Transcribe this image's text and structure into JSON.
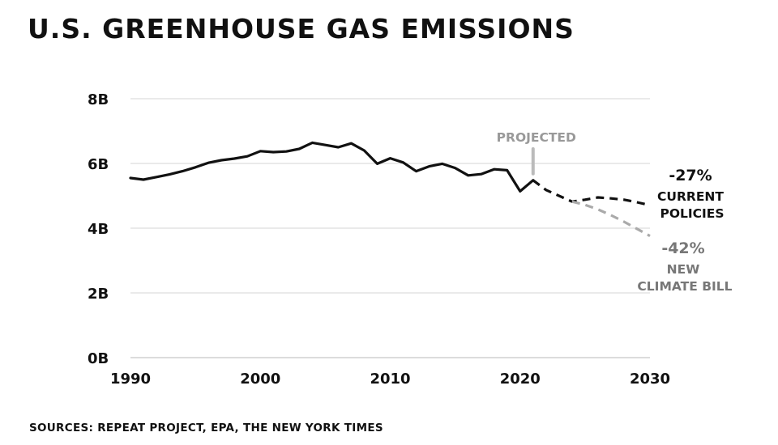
{
  "title": "U.S. GREENHOUSE GAS EMISSIONS",
  "source": "SOURCES: REPEAT PROJECT, EPA, THE NEW YORK TIMES",
  "colors": {
    "text": "#111111",
    "historical": "#111111",
    "current_policies": "#111111",
    "climate_bill": "#aaaaaa",
    "projected_marker": "#bbbbbb",
    "grid": "#dddddd"
  },
  "chart_data": {
    "type": "line",
    "title": "U.S. GREENHOUSE GAS EMISSIONS",
    "xlabel": "",
    "ylabel": "",
    "xlim": [
      1990,
      2030
    ],
    "ylim": [
      0,
      8
    ],
    "grid": true,
    "x_ticks": [
      1990,
      2000,
      2010,
      2020,
      2030
    ],
    "x_tick_labels": [
      "1990",
      "2000",
      "2010",
      "2020",
      "2030"
    ],
    "y_ticks": [
      0,
      2,
      4,
      6,
      8
    ],
    "y_tick_labels": [
      "0B",
      "2B",
      "4B",
      "6B",
      "8B"
    ],
    "series": [
      {
        "style": "solid",
        "color": "#111111",
        "x": [
          1990,
          1991,
          1992,
          1993,
          1994,
          1995,
          1996,
          1997,
          1998,
          1999,
          2000,
          2001,
          2002,
          2003,
          2004,
          2005,
          2006,
          2007,
          2008,
          2009,
          2010,
          2011,
          2012,
          2013,
          2014,
          2015,
          2016,
          2017,
          2018,
          2019,
          2020,
          2021
        ],
        "y": [
          5.55,
          5.5,
          5.58,
          5.66,
          5.76,
          5.88,
          6.02,
          6.1,
          6.15,
          6.22,
          6.38,
          6.35,
          6.37,
          6.45,
          6.64,
          6.57,
          6.5,
          6.62,
          6.4,
          5.99,
          6.16,
          6.03,
          5.76,
          5.91,
          5.99,
          5.86,
          5.63,
          5.67,
          5.82,
          5.79,
          5.14,
          5.48
        ]
      },
      {
        "style": "dashed",
        "color": "#111111",
        "x": [
          2021,
          2022,
          2023,
          2024,
          2025,
          2026,
          2027,
          2028,
          2029,
          2030
        ],
        "y": [
          5.48,
          5.18,
          5.0,
          4.82,
          4.88,
          4.95,
          4.92,
          4.88,
          4.8,
          4.71
        ]
      },
      {
        "style": "dashed",
        "color": "#aaaaaa",
        "x": [
          2024,
          2025,
          2026,
          2027,
          2028,
          2029,
          2030
        ],
        "y": [
          4.82,
          4.72,
          4.58,
          4.4,
          4.2,
          3.98,
          3.76
        ]
      }
    ],
    "projected_start": 2021,
    "annotations": {
      "projected": "PROJECTED",
      "current_pct": "-27%",
      "current_line1": "CURRENT",
      "current_line2": "POLICIES",
      "bill_pct": "-42%",
      "bill_line1": "NEW",
      "bill_line2": "CLIMATE BILL"
    }
  }
}
